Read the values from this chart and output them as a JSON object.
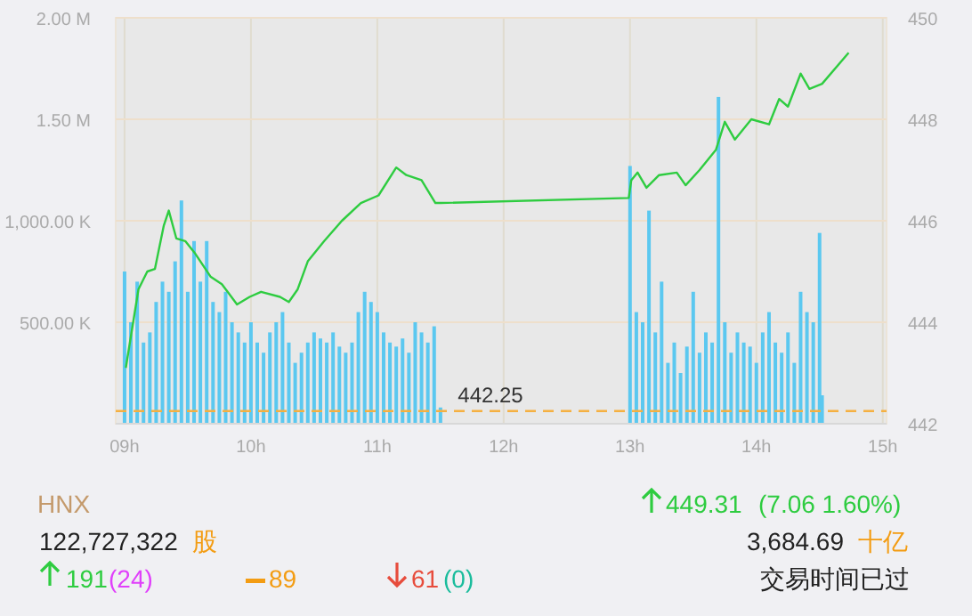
{
  "chart_data": {
    "type": "bar",
    "xlim": [
      8.93,
      15.03
    ],
    "xticks": [
      {
        "value": 9,
        "label": "09h"
      },
      {
        "value": 10,
        "label": "10h"
      },
      {
        "value": 11,
        "label": "11h"
      },
      {
        "value": 12,
        "label": "12h"
      },
      {
        "value": 13,
        "label": "13h"
      },
      {
        "value": 14,
        "label": "14h"
      },
      {
        "value": 15,
        "label": "15h"
      }
    ],
    "ylim": [
      0,
      2000000
    ],
    "yticks": [
      {
        "value": 0,
        "label": null
      },
      {
        "value": 500000,
        "label": "500.00 K"
      },
      {
        "value": 1000000,
        "label": "1,000.00 K"
      },
      {
        "value": 1500000,
        "label": "1.50 M"
      },
      {
        "value": 2000000,
        "label": "2.00 M"
      }
    ],
    "y2lim": [
      442,
      450
    ],
    "y2ticks": [
      442,
      444,
      446,
      448,
      450
    ],
    "grid": true,
    "series": [
      {
        "color": "#5bc8f0",
        "x": [
          9.0,
          9.05,
          9.1,
          9.15,
          9.2,
          9.25,
          9.3,
          9.35,
          9.4,
          9.45,
          9.5,
          9.55,
          9.6,
          9.65,
          9.7,
          9.75,
          9.8,
          9.85,
          9.9,
          9.95,
          10.0,
          10.05,
          10.1,
          10.15,
          10.2,
          10.25,
          10.3,
          10.35,
          10.4,
          10.45,
          10.5,
          10.55,
          10.6,
          10.65,
          10.7,
          10.75,
          10.8,
          10.85,
          10.9,
          10.95,
          11.0,
          11.05,
          11.1,
          11.15,
          11.2,
          11.25,
          11.3,
          11.35,
          11.4,
          11.45,
          11.5,
          13.0,
          13.05,
          13.1,
          13.15,
          13.2,
          13.25,
          13.3,
          13.35,
          13.4,
          13.45,
          13.5,
          13.55,
          13.6,
          13.65,
          13.7,
          13.75,
          13.8,
          13.85,
          13.9,
          13.95,
          14.0,
          14.05,
          14.1,
          14.15,
          14.2,
          14.25,
          14.3,
          14.35,
          14.4,
          14.45,
          14.5,
          14.52
        ],
        "values": [
          750000,
          500000,
          700000,
          400000,
          450000,
          600000,
          700000,
          650000,
          800000,
          1100000,
          650000,
          900000,
          700000,
          900000,
          600000,
          550000,
          650000,
          500000,
          450000,
          400000,
          500000,
          400000,
          350000,
          450000,
          500000,
          550000,
          400000,
          300000,
          350000,
          400000,
          450000,
          420000,
          400000,
          450000,
          380000,
          350000,
          400000,
          550000,
          650000,
          600000,
          550000,
          450000,
          400000,
          380000,
          420000,
          350000,
          500000,
          450000,
          400000,
          480000,
          80000,
          1270000,
          550000,
          500000,
          1050000,
          450000,
          700000,
          300000,
          400000,
          250000,
          380000,
          650000,
          350000,
          450000,
          400000,
          1610000,
          500000,
          350000,
          450000,
          400000,
          380000,
          300000,
          450000,
          550000,
          400000,
          350000,
          450000,
          300000,
          650000,
          550000,
          500000,
          940000,
          140000
        ]
      },
      {
        "type": "line",
        "axis": "y2",
        "color": "#2ecc40",
        "x": [
          9.01,
          9.11,
          9.18,
          9.24,
          9.31,
          9.35,
          9.41,
          9.48,
          9.56,
          9.68,
          9.77,
          9.89,
          9.99,
          10.08,
          10.23,
          10.3,
          10.37,
          10.45,
          10.58,
          10.72,
          10.87,
          11.01,
          11.15,
          11.23,
          11.35,
          11.46,
          11.5,
          12.99,
          13.01,
          13.06,
          13.13,
          13.23,
          13.37,
          13.44,
          13.55,
          13.68,
          13.75,
          13.83,
          13.96,
          14.1,
          14.18,
          14.25,
          14.35,
          14.42,
          14.52,
          14.73
        ],
        "values": [
          443.1,
          444.65,
          445.0,
          445.05,
          445.9,
          446.2,
          445.65,
          445.6,
          445.35,
          444.9,
          444.75,
          444.35,
          444.5,
          444.6,
          444.5,
          444.4,
          444.65,
          445.2,
          445.6,
          446.0,
          446.35,
          446.5,
          447.05,
          446.9,
          446.8,
          446.35,
          446.35,
          446.45,
          446.8,
          446.95,
          446.65,
          446.9,
          446.95,
          446.7,
          447.0,
          447.4,
          447.95,
          447.6,
          448.0,
          447.9,
          448.4,
          448.25,
          448.9,
          448.6,
          448.7,
          449.31
        ]
      }
    ],
    "ref_lines": [
      {
        "axis": "y2",
        "value": 442.25,
        "label": "442.25",
        "color": "#f5b041",
        "line_style": "dashed"
      }
    ],
    "annotations": [
      "HNX",
      "449.31",
      "(7.06  1.60%)",
      "122,727,322",
      "股",
      "3,684.69",
      "十亿",
      "191",
      "(24)",
      "89",
      "61",
      "(0)",
      "交易时间已过"
    ]
  }
}
